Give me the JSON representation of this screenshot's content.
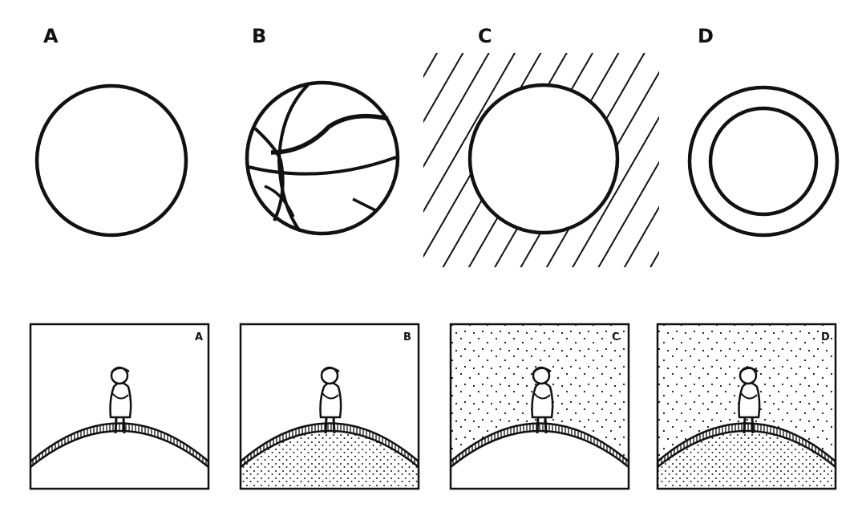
{
  "figure": {
    "top_row": [
      {
        "label": "A",
        "variant": "plain-circle"
      },
      {
        "label": "B",
        "variant": "basketball"
      },
      {
        "label": "C",
        "variant": "circle-on-hatched-square"
      },
      {
        "label": "D",
        "variant": "double-circle-ring"
      }
    ],
    "bottom_row": [
      {
        "label": "A",
        "sky": "blank",
        "ground": "blank"
      },
      {
        "label": "B",
        "sky": "blank",
        "ground": "dotted"
      },
      {
        "label": "C",
        "sky": "dotted",
        "ground": "blank"
      },
      {
        "label": "D",
        "sky": "dotted",
        "ground": "dotted"
      }
    ],
    "colors": {
      "ink": "#111111",
      "paper": "#ffffff"
    },
    "icons": [
      "person-sitting-icon"
    ]
  }
}
